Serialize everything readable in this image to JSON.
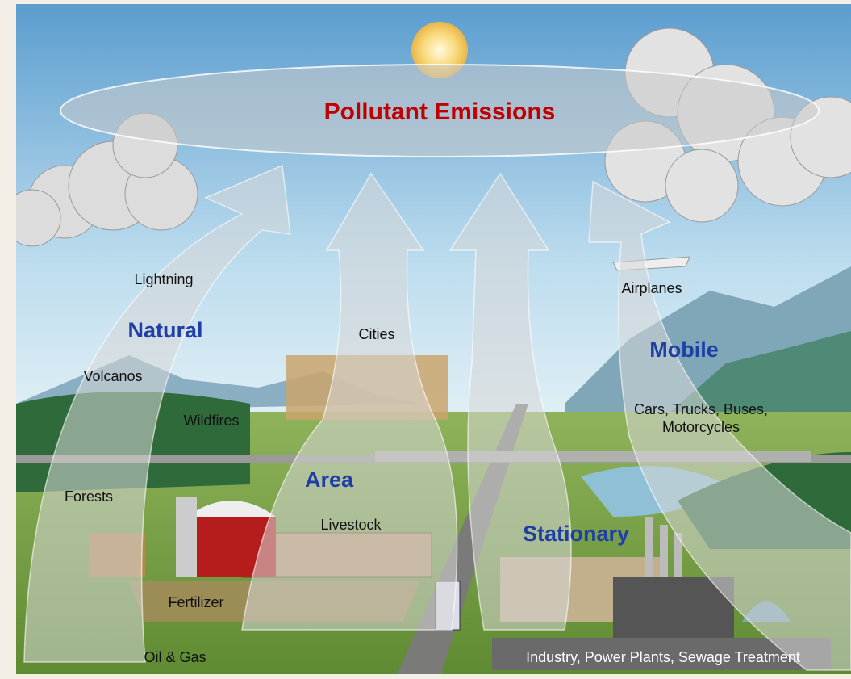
{
  "title": "Pollutant Emissions",
  "categories": [
    {
      "label": "Natural",
      "sources": [
        "Lightning",
        "Volcanos",
        "Wildfires",
        "Forests"
      ]
    },
    {
      "label": "Area",
      "sources": [
        "Cities",
        "Livestock",
        "Fertilizer",
        "Oil & Gas"
      ]
    },
    {
      "label": "Mobile",
      "sources": [
        "Airplanes",
        "Cars, Trucks, Buses,",
        "Motorcycles"
      ]
    },
    {
      "label": "Stationary",
      "sources": [
        "Industry, Power Plants, Sewage Treatment"
      ]
    }
  ]
}
